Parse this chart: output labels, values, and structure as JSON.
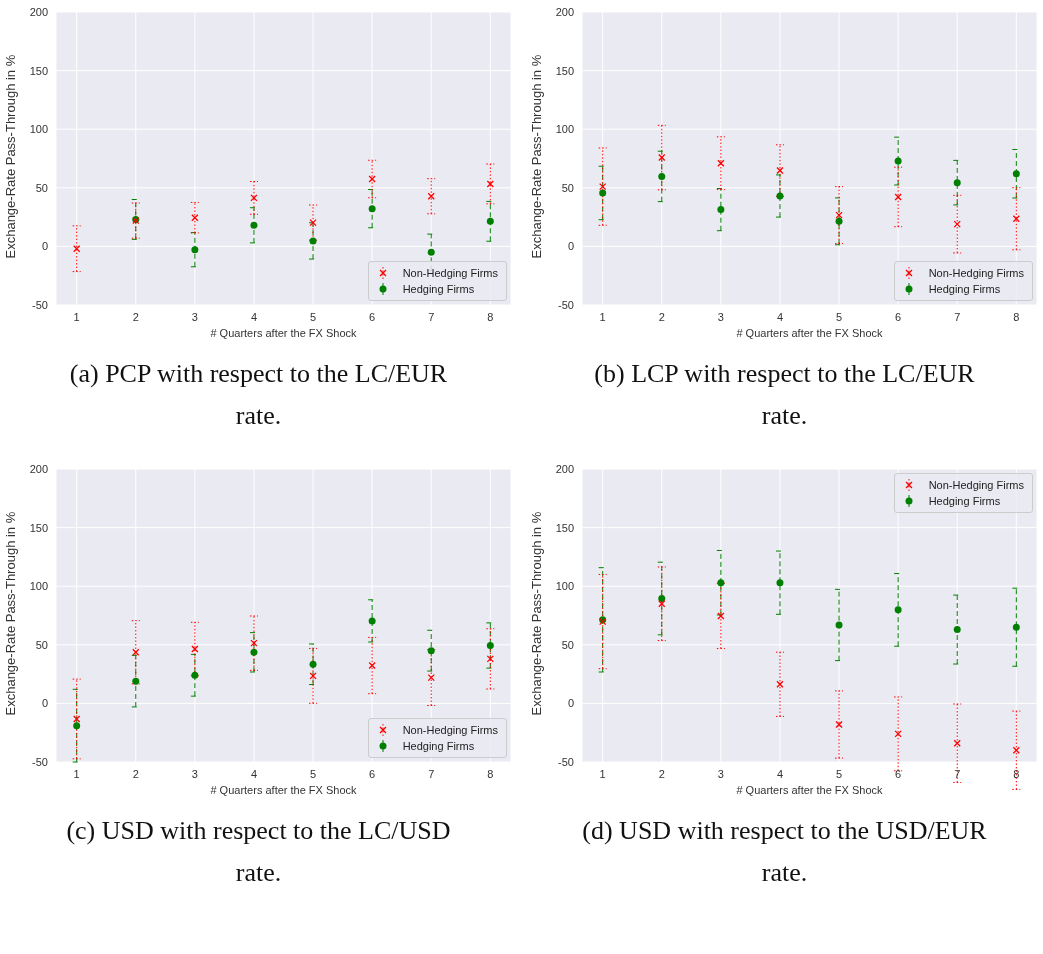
{
  "chart_data": [
    {
      "type": "scatter",
      "xlabel": "# Quarters after the FX Shock",
      "ylabel": "Exchange-Rate Pass-Through in %",
      "x": [
        1,
        2,
        3,
        4,
        5,
        6,
        7,
        8
      ],
      "xlim": [
        0.65,
        8.35
      ],
      "xticks": [
        1,
        2,
        3,
        4,
        5,
        6,
        7,
        8
      ],
      "ylim": [
        -50,
        200
      ],
      "yticks": [
        -50,
        0,
        50,
        100,
        150,
        200
      ],
      "grid": true,
      "legend": "bottom right",
      "annotations": [
        "(a) PCP with respect to the LC/EUR rate."
      ],
      "series": [
        {
          "name": "Non-Hedging Firms",
          "color": "#ff0000",
          "marker": "cross",
          "line_style": "dotted",
          "values": [
            -2,
            22,
            24.5,
            41.4,
            20.3,
            57.5,
            42.8,
            53.3
          ],
          "errors": [
            19.5,
            15,
            13,
            14,
            15,
            16,
            15,
            17
          ]
        },
        {
          "name": "Hedging Firms",
          "color": "#008000",
          "marker": "circle",
          "line_style": "dashed",
          "values": [
            null,
            23,
            -2.8,
            18,
            4.7,
            32.2,
            -5,
            21.4
          ],
          "errors": [
            null,
            17,
            14.6,
            15,
            15.5,
            16.3,
            15.5,
            17
          ]
        }
      ]
    },
    {
      "type": "scatter",
      "xlabel": "# Quarters after the FX Shock",
      "ylabel": "Exchange-Rate Pass-Through in %",
      "x": [
        1,
        2,
        3,
        4,
        5,
        6,
        7,
        8
      ],
      "xlim": [
        0.65,
        8.35
      ],
      "xticks": [
        1,
        2,
        3,
        4,
        5,
        6,
        7,
        8
      ],
      "ylim": [
        -50,
        200
      ],
      "yticks": [
        -50,
        0,
        50,
        100,
        150,
        200
      ],
      "grid": true,
      "legend": "bottom right",
      "annotations": [
        "(b) LCP with respect to the LC/EUR rate."
      ],
      "series": [
        {
          "name": "Non-Hedging Firms",
          "color": "#ff0000",
          "marker": "cross",
          "line_style": "dotted",
          "values": [
            51,
            75.8,
            71,
            64.7,
            26.7,
            42.2,
            19,
            23.6
          ],
          "errors": [
            33,
            27.5,
            22.5,
            22,
            24.3,
            25.4,
            24.6,
            26.5
          ]
        },
        {
          "name": "Hedging Firms",
          "color": "#008000",
          "marker": "circle",
          "line_style": "dashed",
          "values": [
            45.6,
            59.7,
            31.4,
            43,
            21.4,
            72.8,
            54.4,
            62
          ],
          "errors": [
            22.8,
            21.5,
            18,
            18,
            20,
            20.4,
            19,
            20.7
          ]
        }
      ]
    },
    {
      "type": "scatter",
      "xlabel": "# Quarters after the FX Shock",
      "ylabel": "Exchange-Rate Pass-Through in %",
      "x": [
        1,
        2,
        3,
        4,
        5,
        6,
        7,
        8
      ],
      "xlim": [
        0.65,
        8.35
      ],
      "xticks": [
        1,
        2,
        3,
        4,
        5,
        6,
        7,
        8
      ],
      "ylim": [
        -50,
        200
      ],
      "yticks": [
        -50,
        0,
        50,
        100,
        150,
        200
      ],
      "grid": true,
      "legend": "bottom right",
      "annotations": [
        "(c) USD with respect to the LC/USD rate."
      ],
      "series": [
        {
          "name": "Non-Hedging Firms",
          "color": "#ff0000",
          "marker": "cross",
          "line_style": "dotted",
          "values": [
            -13.3,
            43.6,
            46.4,
            51.4,
            23.5,
            32.3,
            22,
            38
          ],
          "errors": [
            34,
            27,
            22.8,
            23.2,
            23.4,
            24,
            23.8,
            25.7
          ]
        },
        {
          "name": "Hedging Firms",
          "color": "#008000",
          "marker": "circle",
          "line_style": "dashed",
          "values": [
            -19,
            19,
            24,
            43.6,
            33.4,
            70.4,
            45,
            49.4
          ],
          "errors": [
            31,
            22,
            17.8,
            16.8,
            17.3,
            18,
            17.4,
            19.3
          ]
        }
      ]
    },
    {
      "type": "scatter",
      "xlabel": "# Quarters after the FX Shock",
      "ylabel": "Exchange-Rate Pass-Through in %",
      "x": [
        1,
        2,
        3,
        4,
        5,
        6,
        7,
        8
      ],
      "xlim": [
        0.65,
        8.35
      ],
      "xticks": [
        1,
        2,
        3,
        4,
        5,
        6,
        7,
        8
      ],
      "ylim": [
        -50,
        200
      ],
      "yticks": [
        -50,
        0,
        50,
        100,
        150,
        200
      ],
      "grid": true,
      "legend": "top right",
      "annotations": [
        "(d) USD with respect to the USD/EUR rate."
      ],
      "series": [
        {
          "name": "Non-Hedging Firms",
          "color": "#ff0000",
          "marker": "cross",
          "line_style": "dotted",
          "values": [
            69.8,
            85,
            74.6,
            16.3,
            -18,
            -26,
            -34,
            -40
          ],
          "errors": [
            40.2,
            31.4,
            27.8,
            27.4,
            28.7,
            31.5,
            33.5,
            33.4
          ]
        },
        {
          "name": "Hedging Firms",
          "color": "#008000",
          "marker": "circle",
          "line_style": "dashed",
          "values": [
            71.3,
            89.5,
            103,
            103,
            66.9,
            79.8,
            63,
            65
          ],
          "errors": [
            44.5,
            31,
            27.5,
            27,
            30.4,
            31,
            29.4,
            33.3
          ]
        }
      ]
    }
  ]
}
